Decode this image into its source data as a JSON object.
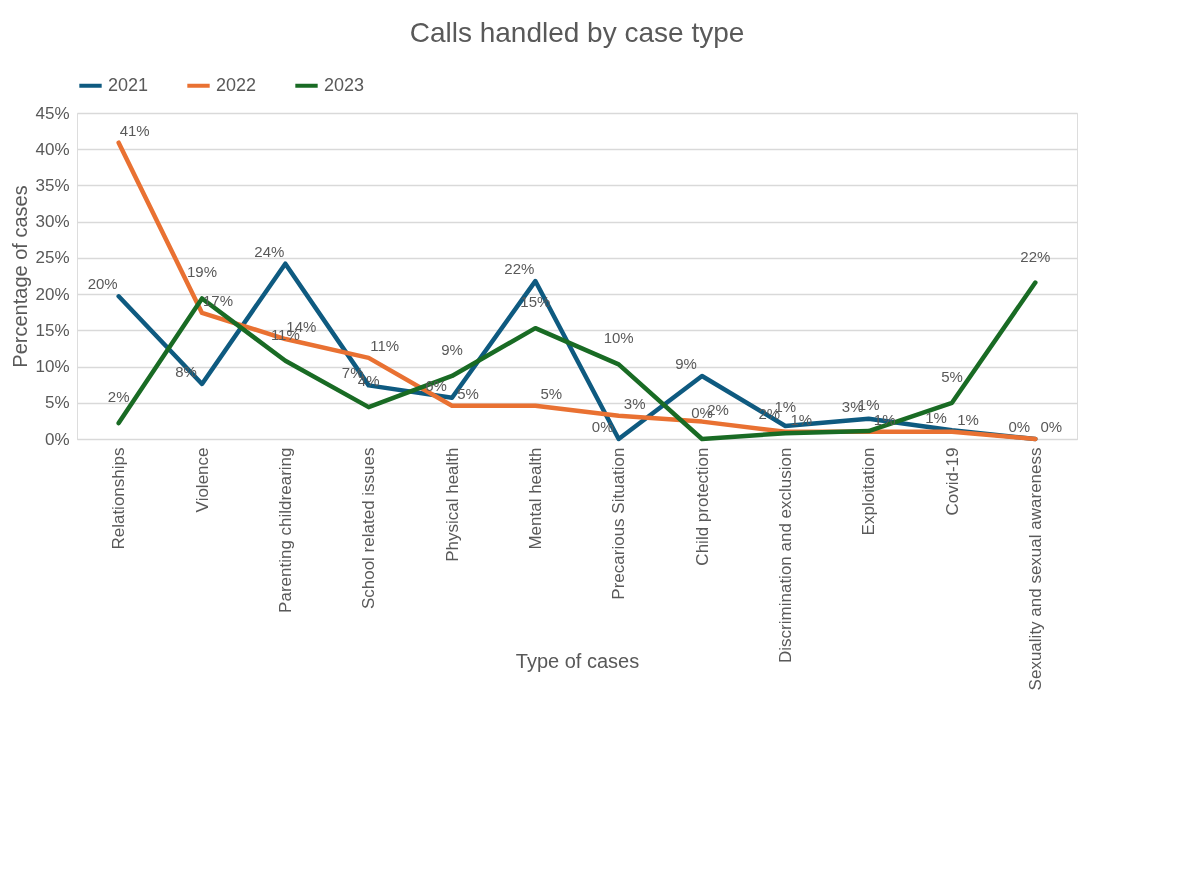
{
  "chart_data": {
    "type": "line",
    "title": "Calls handled by case type",
    "xlabel": "Type of cases",
    "ylabel": "Percentage of cases",
    "categories": [
      "Relationships",
      "Violence",
      "Parenting childrearing",
      "School related issues",
      "Physical health",
      "Mental health",
      "Precarious Situation",
      "Child protection",
      "Discrimination and exclusion",
      "Exploitation",
      "Covid-19",
      "Sexuality and sexual awareness"
    ],
    "series": [
      {
        "name": "2021",
        "color": "#0e5a80",
        "values": [
          19.7,
          7.6,
          24.2,
          7.4,
          5.7,
          21.8,
          0,
          8.7,
          1.8,
          2.8,
          1.2,
          0
        ],
        "value_labels": [
          "20%",
          "8%",
          "24%",
          "7%",
          "6%",
          "22%",
          "0%",
          "9%",
          "2%",
          "3%",
          "1%",
          "0%"
        ]
      },
      {
        "name": "2022",
        "color": "#e97132",
        "values": [
          40.9,
          17.4,
          13.8,
          11.2,
          4.6,
          4.6,
          3.2,
          2.4,
          1.0,
          1.0,
          1.0,
          0
        ],
        "value_labels": [
          "41%",
          "17%",
          "14%",
          "11%",
          "5%",
          "5%",
          "3%",
          "2%",
          "1%",
          "1%",
          "1%",
          "0%"
        ]
      },
      {
        "name": "2023",
        "color": "#196b24",
        "values": [
          2.2,
          19.4,
          10.8,
          4.4,
          8.7,
          15.3,
          10.3,
          0,
          0.8,
          1.1,
          5.0,
          21.6
        ],
        "value_labels": [
          "2%",
          "19%",
          "11%",
          "4%",
          "9%",
          "15%",
          "10%",
          "0%",
          "1%",
          "1%",
          "5%",
          "22%"
        ]
      }
    ],
    "ylim": [
      0,
      45
    ],
    "yticks": [
      {
        "value": 0,
        "label": "0%"
      },
      {
        "value": 5,
        "label": "5%"
      },
      {
        "value": 10,
        "label": "10%"
      },
      {
        "value": 15,
        "label": "15%"
      },
      {
        "value": 20,
        "label": "20%"
      },
      {
        "value": 25,
        "label": "25%"
      },
      {
        "value": 30,
        "label": "30%"
      },
      {
        "value": 35,
        "label": "35%"
      },
      {
        "value": 40,
        "label": "40%"
      },
      {
        "value": 45,
        "label": "45%"
      }
    ],
    "grid": "y",
    "legend": "top",
    "marker": "none",
    "line_style": "solid"
  }
}
